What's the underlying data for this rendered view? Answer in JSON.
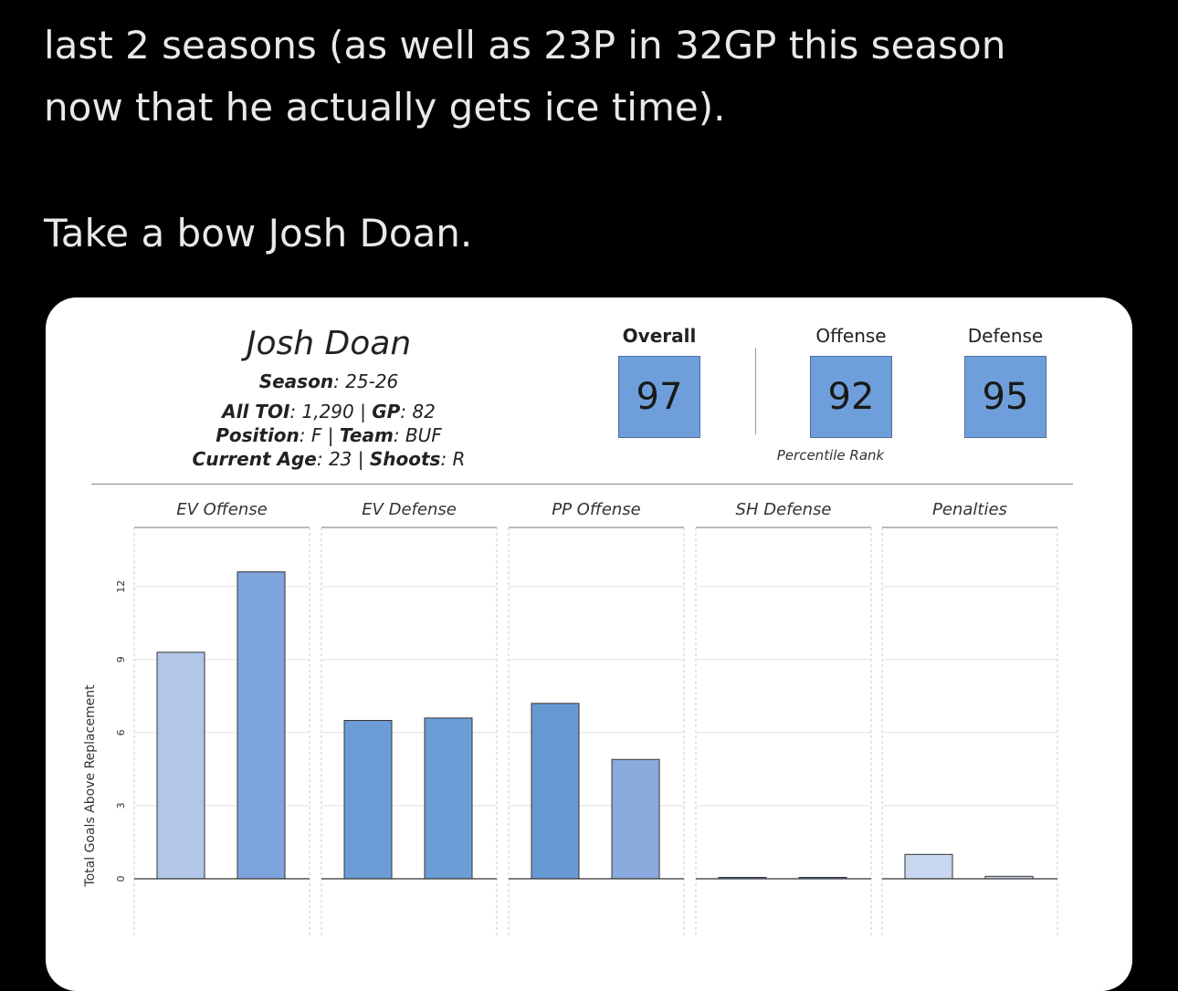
{
  "tweet": {
    "line1": "last 2 seasons (as well as 23P in 32GP this season",
    "line2": "now that he actually gets ice time).",
    "line3": "Take a bow Josh Doan."
  },
  "card": {
    "player_name": "Josh Doan",
    "season_label": "Season",
    "season_value": ": 25-26",
    "toi_label": "All TOI",
    "toi_value": ": 1,290 | ",
    "gp_label": "GP",
    "gp_value": ": 82",
    "position_label": "Position",
    "position_value": ": F | ",
    "team_label": "Team",
    "team_value": ": BUF",
    "age_label": "Current Age",
    "age_value": ": 23 | ",
    "shoots_label": "Shoots",
    "shoots_value": ": R",
    "ranks": {
      "overall_label": "Overall",
      "overall_value": "97",
      "offense_label": "Offense",
      "offense_value": "92",
      "defense_label": "Defense",
      "defense_value": "95",
      "caption": "Percentile Rank"
    }
  },
  "chart_data": {
    "type": "bar",
    "ylabel": "Total Goals Above Replacement",
    "y_ticks": [
      "0",
      "3",
      "6",
      "9",
      "12"
    ],
    "ylim": [
      0,
      14.5
    ],
    "grid": true,
    "panels": [
      {
        "name": "EV Offense",
        "values": [
          9.3,
          12.6
        ],
        "colors": [
          "#b1c6e8",
          "#7ea4dc"
        ]
      },
      {
        "name": "EV Defense",
        "values": [
          6.5,
          6.6
        ],
        "colors": [
          "#6c9dd6",
          "#6c9dd6"
        ]
      },
      {
        "name": "PP Offense",
        "values": [
          7.2,
          4.9
        ],
        "colors": [
          "#6799d4",
          "#8aabdd"
        ]
      },
      {
        "name": "SH Defense",
        "values": [
          0.05,
          0.05
        ],
        "colors": [
          "#6c9dd6",
          "#6c9dd6"
        ]
      },
      {
        "name": "Penalties",
        "values": [
          1.0,
          0.1
        ],
        "colors": [
          "#c9d7f0",
          "#c9d7f0"
        ]
      }
    ]
  }
}
